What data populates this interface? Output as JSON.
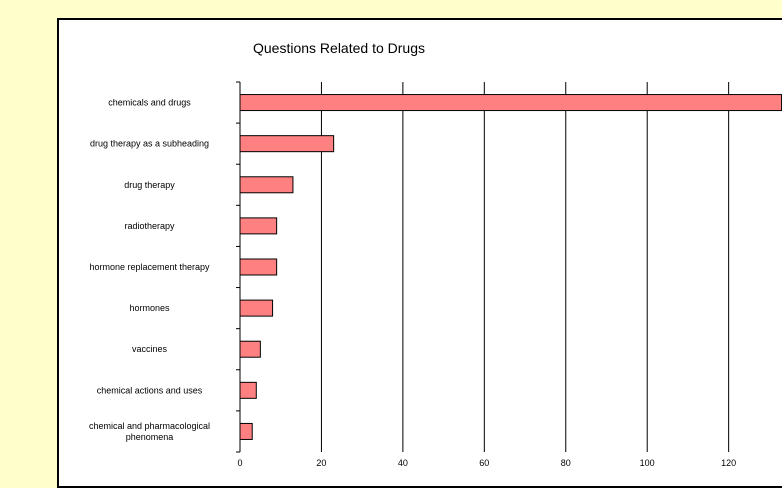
{
  "chart_data": {
    "type": "bar",
    "orientation": "horizontal",
    "title": "Questions Related to Drugs",
    "xlabel": "",
    "ylabel": "",
    "categories": [
      "chemicals and drugs",
      "drug therapy as a subheading",
      "drug therapy",
      "radiotherapy",
      "hormone replacement therapy",
      "hormones",
      "vaccines",
      "chemical actions and uses",
      "chemical and pharmacological phenomena"
    ],
    "values": [
      133,
      23,
      13,
      9,
      9,
      8,
      5,
      4,
      3
    ],
    "xlim": [
      0,
      133
    ],
    "xticks": [
      0,
      20,
      40,
      60,
      80,
      100,
      120
    ],
    "grid": "vertical",
    "legend": "none",
    "bar_color": "#ff8080",
    "bar_edge_color": "#000000",
    "background_color": "#ffffcc",
    "plot_background_color": "#ffffff"
  }
}
